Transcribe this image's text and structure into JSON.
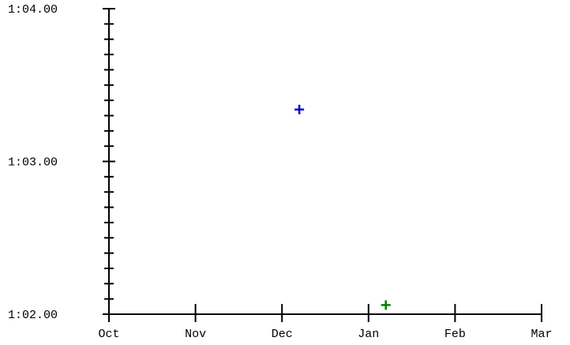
{
  "chart_data": {
    "type": "scatter",
    "title": "",
    "xlabel": "",
    "ylabel": "",
    "grid": false,
    "x_axis": {
      "type": "date",
      "range": [
        "Oct",
        "Mar"
      ],
      "tick_labels": [
        "Oct",
        "Nov",
        "Dec",
        "Jan",
        "Feb",
        "Mar"
      ]
    },
    "y_axis": {
      "type": "duration",
      "range": [
        "1:02.00",
        "1:04.00"
      ],
      "tick_labels": [
        "1:04.00",
        "1:03.00",
        "1:02.00"
      ]
    },
    "series": [
      {
        "color": "#0000cc",
        "marker": "plus",
        "points": [
          {
            "x": "Dec 7",
            "y": "1:03.34"
          }
        ]
      },
      {
        "color": "#008000",
        "marker": "plus",
        "points": [
          {
            "x": "Jan 7",
            "y": "1:02.06"
          }
        ]
      }
    ]
  }
}
